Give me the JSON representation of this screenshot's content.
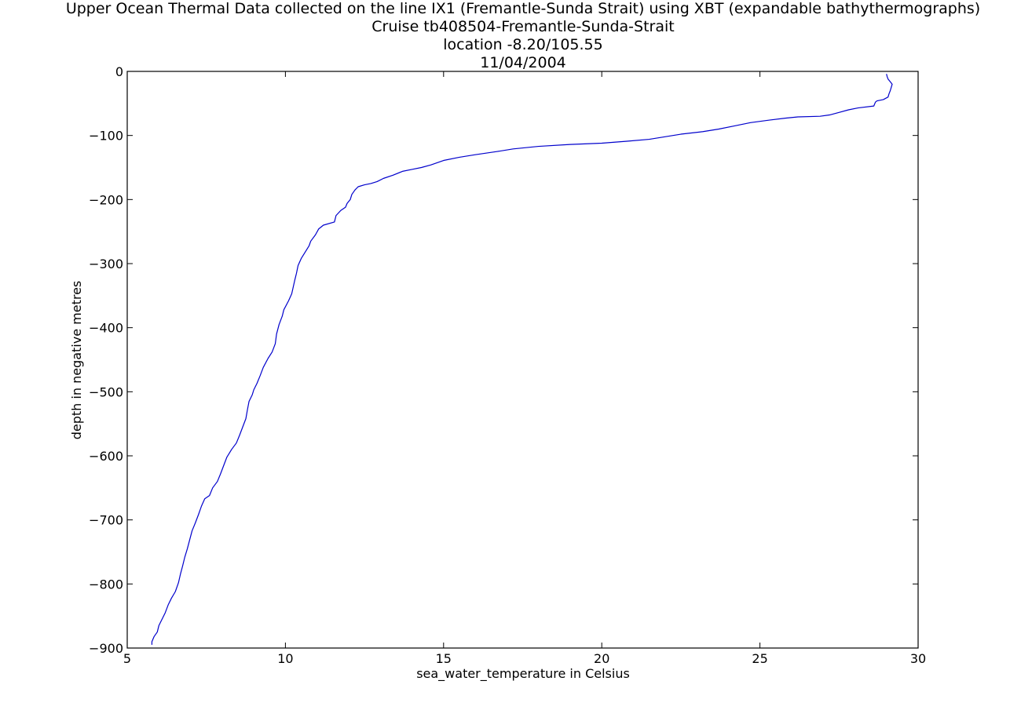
{
  "chart_data": {
    "type": "line",
    "title": [
      "Upper Ocean Thermal Data collected on the line IX1 (Fremantle-Sunda Strait) using XBT (expandable bathythermographs)",
      "Cruise  tb408504-Fremantle-Sunda-Strait",
      "location -8.20/105.55",
      "11/04/2004"
    ],
    "xlabel": "sea_water_temperature in Celsius",
    "ylabel": "depth in negative metres",
    "xlim": [
      5,
      30
    ],
    "ylim": [
      -900,
      0
    ],
    "xticks": [
      5,
      10,
      15,
      20,
      25,
      30
    ],
    "yticks": [
      0,
      -100,
      -200,
      -300,
      -400,
      -500,
      -600,
      -700,
      -800,
      -900
    ],
    "xtick_labels": [
      "5",
      "10",
      "15",
      "20",
      "25",
      "30"
    ],
    "ytick_labels": [
      "0",
      "−100",
      "−200",
      "−300",
      "−400",
      "−500",
      "−600",
      "−700",
      "−800",
      "−900"
    ],
    "grid": false,
    "legend": "none",
    "series": [
      {
        "color": "#0000cc",
        "points": [
          [
            29.0,
            -4
          ],
          [
            29.02,
            -8
          ],
          [
            29.05,
            -12
          ],
          [
            29.1,
            -15
          ],
          [
            29.15,
            -18
          ],
          [
            29.18,
            -20
          ],
          [
            29.15,
            -25
          ],
          [
            29.12,
            -30
          ],
          [
            29.08,
            -35
          ],
          [
            29.05,
            -40
          ],
          [
            28.9,
            -44
          ],
          [
            28.7,
            -46
          ],
          [
            28.65,
            -48
          ],
          [
            28.6,
            -54
          ],
          [
            28.1,
            -57
          ],
          [
            27.8,
            -60
          ],
          [
            27.5,
            -64
          ],
          [
            27.2,
            -68
          ],
          [
            26.9,
            -70
          ],
          [
            26.2,
            -71
          ],
          [
            25.8,
            -73
          ],
          [
            25.3,
            -76
          ],
          [
            24.7,
            -80
          ],
          [
            24.2,
            -85
          ],
          [
            23.7,
            -90
          ],
          [
            23.2,
            -94
          ],
          [
            22.5,
            -98
          ],
          [
            22.0,
            -102
          ],
          [
            21.5,
            -106
          ],
          [
            20.8,
            -109
          ],
          [
            20.0,
            -112
          ],
          [
            19.0,
            -114
          ],
          [
            18.0,
            -117
          ],
          [
            17.2,
            -121
          ],
          [
            16.7,
            -125
          ],
          [
            16.0,
            -130
          ],
          [
            15.5,
            -134
          ],
          [
            15.0,
            -139
          ],
          [
            14.6,
            -146
          ],
          [
            14.3,
            -150
          ],
          [
            14.0,
            -153
          ],
          [
            13.7,
            -156
          ],
          [
            13.4,
            -162
          ],
          [
            13.1,
            -167
          ],
          [
            12.9,
            -172
          ],
          [
            12.7,
            -175
          ],
          [
            12.5,
            -177
          ],
          [
            12.3,
            -180
          ],
          [
            12.2,
            -185
          ],
          [
            12.1,
            -192
          ],
          [
            12.05,
            -200
          ],
          [
            11.95,
            -206
          ],
          [
            11.9,
            -212
          ],
          [
            11.75,
            -217
          ],
          [
            11.6,
            -225
          ],
          [
            11.55,
            -235
          ],
          [
            11.2,
            -240
          ],
          [
            11.05,
            -246
          ],
          [
            10.95,
            -255
          ],
          [
            10.8,
            -265
          ],
          [
            10.75,
            -272
          ],
          [
            10.6,
            -284
          ],
          [
            10.5,
            -292
          ],
          [
            10.4,
            -303
          ],
          [
            10.35,
            -315
          ],
          [
            10.3,
            -325
          ],
          [
            10.25,
            -336
          ],
          [
            10.2,
            -347
          ],
          [
            10.1,
            -358
          ],
          [
            9.95,
            -372
          ],
          [
            9.9,
            -382
          ],
          [
            9.8,
            -395
          ],
          [
            9.72,
            -410
          ],
          [
            9.68,
            -425
          ],
          [
            9.58,
            -438
          ],
          [
            9.45,
            -448
          ],
          [
            9.3,
            -462
          ],
          [
            9.2,
            -475
          ],
          [
            9.1,
            -487
          ],
          [
            9.0,
            -497
          ],
          [
            8.95,
            -505
          ],
          [
            8.85,
            -515
          ],
          [
            8.8,
            -528
          ],
          [
            8.75,
            -542
          ],
          [
            8.65,
            -555
          ],
          [
            8.55,
            -568
          ],
          [
            8.45,
            -580
          ],
          [
            8.3,
            -590
          ],
          [
            8.15,
            -602
          ],
          [
            8.05,
            -615
          ],
          [
            7.95,
            -628
          ],
          [
            7.85,
            -640
          ],
          [
            7.7,
            -650
          ],
          [
            7.6,
            -662
          ],
          [
            7.45,
            -667
          ],
          [
            7.35,
            -678
          ],
          [
            7.25,
            -692
          ],
          [
            7.15,
            -705
          ],
          [
            7.05,
            -717
          ],
          [
            6.98,
            -730
          ],
          [
            6.9,
            -745
          ],
          [
            6.82,
            -758
          ],
          [
            6.75,
            -772
          ],
          [
            6.68,
            -785
          ],
          [
            6.62,
            -798
          ],
          [
            6.52,
            -812
          ],
          [
            6.4,
            -822
          ],
          [
            6.3,
            -832
          ],
          [
            6.2,
            -845
          ],
          [
            6.1,
            -855
          ],
          [
            6.0,
            -865
          ],
          [
            5.95,
            -875
          ],
          [
            5.85,
            -882
          ],
          [
            5.78,
            -890
          ],
          [
            5.78,
            -895
          ]
        ]
      }
    ]
  }
}
